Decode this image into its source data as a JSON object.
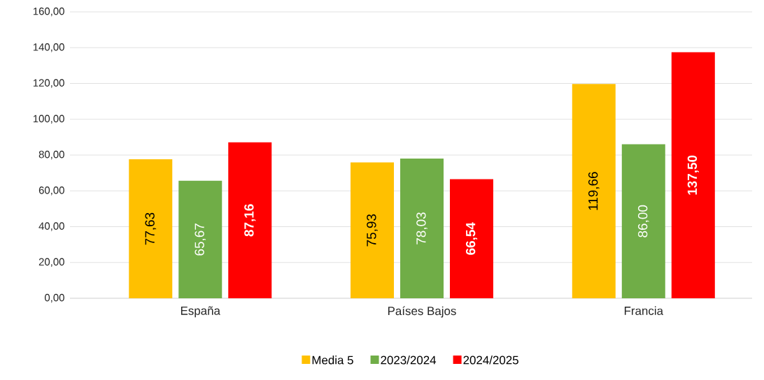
{
  "chart_data": {
    "type": "bar",
    "categories": [
      "España",
      "Países Bajos",
      "Francia"
    ],
    "series": [
      {
        "name": "Media 5",
        "color": "#ffc000",
        "values": [
          77.63,
          75.93,
          119.66
        ],
        "value_labels": [
          "77,63",
          "75,93",
          "119,66"
        ]
      },
      {
        "name": "2023/2024",
        "color": "#70ad47",
        "values": [
          65.67,
          78.03,
          86.0
        ],
        "value_labels": [
          "65,67",
          "78,03",
          "86,00"
        ]
      },
      {
        "name": "2024/2025",
        "color": "#ff0000",
        "values": [
          87.16,
          66.54,
          137.5
        ],
        "value_labels": [
          "87,16",
          "66,54",
          "137,50"
        ]
      }
    ],
    "ylim": [
      0,
      160
    ],
    "yticks": [
      {
        "value": 0,
        "label": "0,00"
      },
      {
        "value": 20,
        "label": "20,00"
      },
      {
        "value": 40,
        "label": "40,00"
      },
      {
        "value": 60,
        "label": "60,00"
      },
      {
        "value": 80,
        "label": "80,00"
      },
      {
        "value": 100,
        "label": "100,00"
      },
      {
        "value": 120,
        "label": "120,00"
      },
      {
        "value": 140,
        "label": "140,00"
      },
      {
        "value": 160,
        "label": "160,00"
      }
    ],
    "grid": "y",
    "legend": "bottom"
  }
}
